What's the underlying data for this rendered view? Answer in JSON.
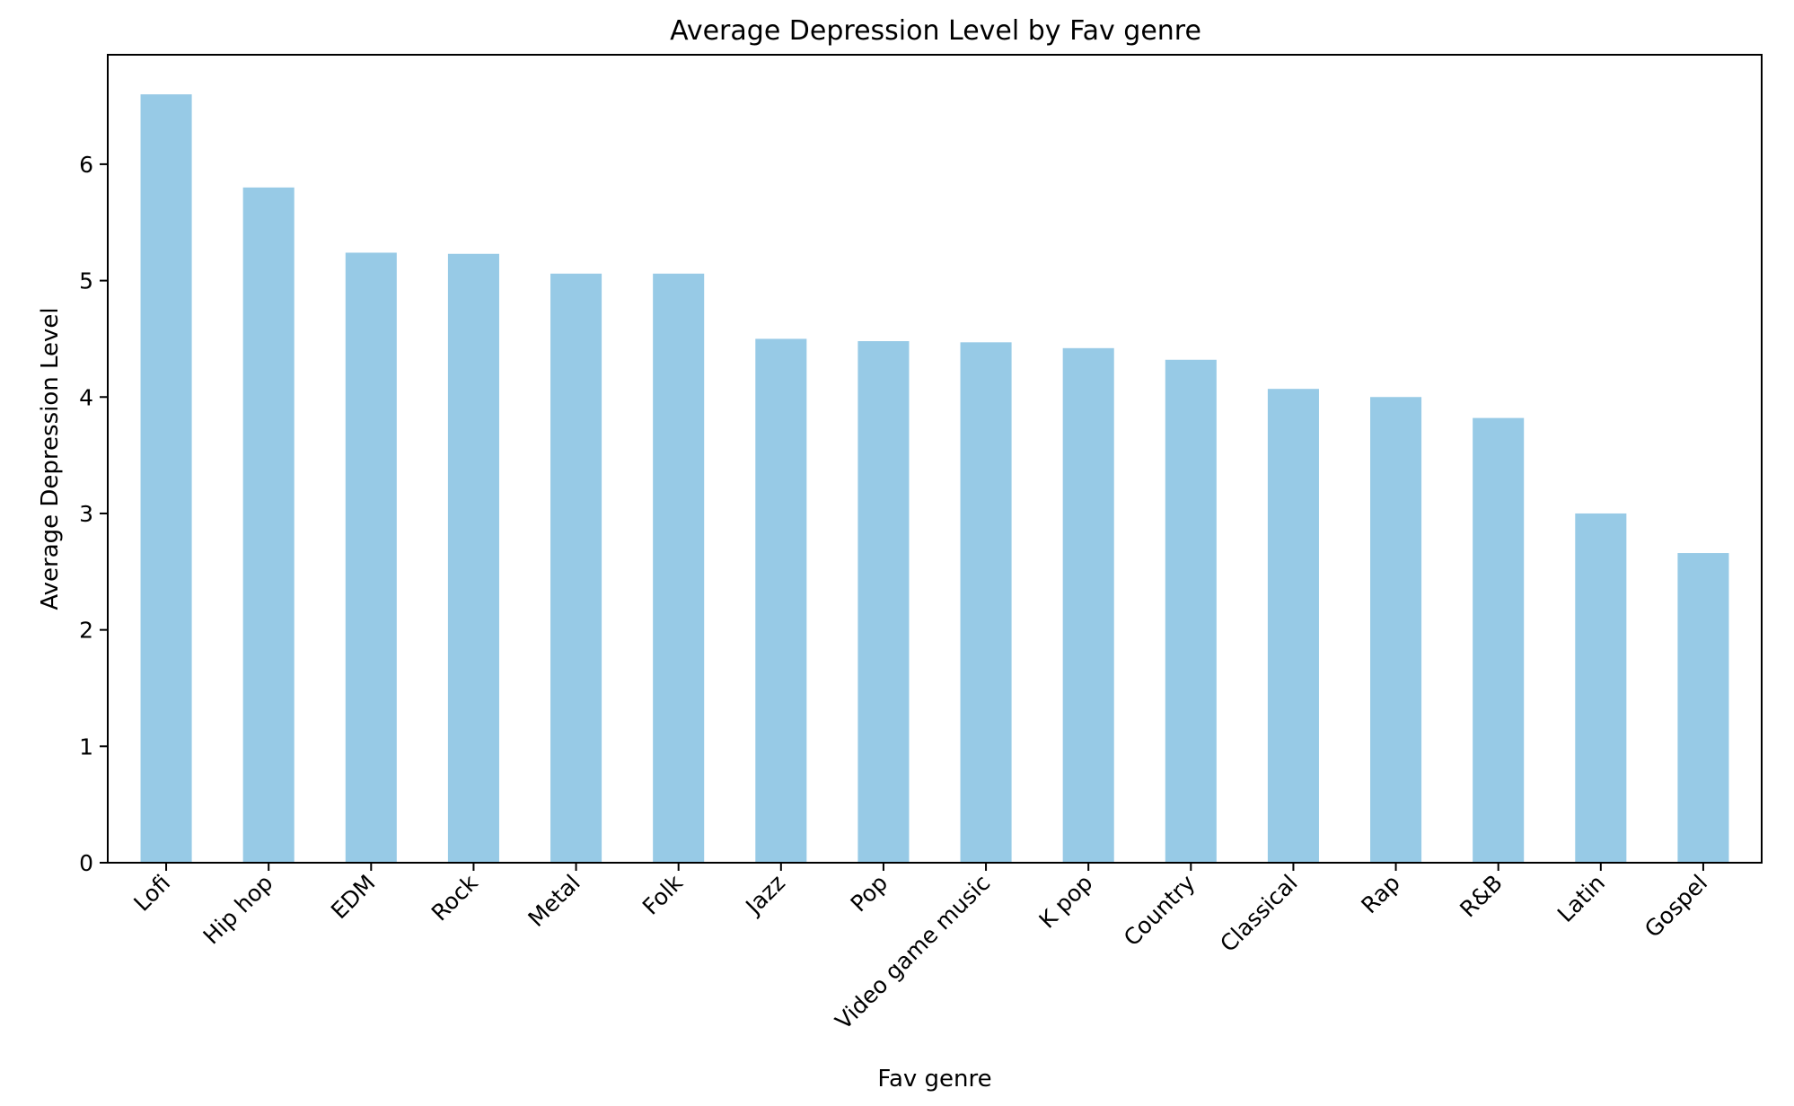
{
  "chart_data": {
    "type": "bar",
    "title": "Average Depression Level by Fav genre",
    "xlabel": "Fav genre",
    "ylabel": "Average Depression Level",
    "categories": [
      "Lofi",
      "Hip hop",
      "EDM",
      "Rock",
      "Metal",
      "Folk",
      "Jazz",
      "Pop",
      "Video game music",
      "K pop",
      "Country",
      "Classical",
      "Rap",
      "R&B",
      "Latin",
      "Gospel"
    ],
    "values": [
      6.6,
      5.8,
      5.24,
      5.23,
      5.06,
      5.06,
      4.5,
      4.48,
      4.47,
      4.42,
      4.32,
      4.07,
      4.0,
      3.82,
      3.0,
      2.66
    ],
    "ylim": [
      0,
      6.94
    ],
    "yticks": [
      0,
      1,
      2,
      3,
      4,
      5,
      6
    ],
    "ytick_labels": [
      "0",
      "1",
      "2",
      "3",
      "4",
      "5",
      "6"
    ],
    "bar_color": "#97cae6",
    "grid": false,
    "legend": "none"
  }
}
